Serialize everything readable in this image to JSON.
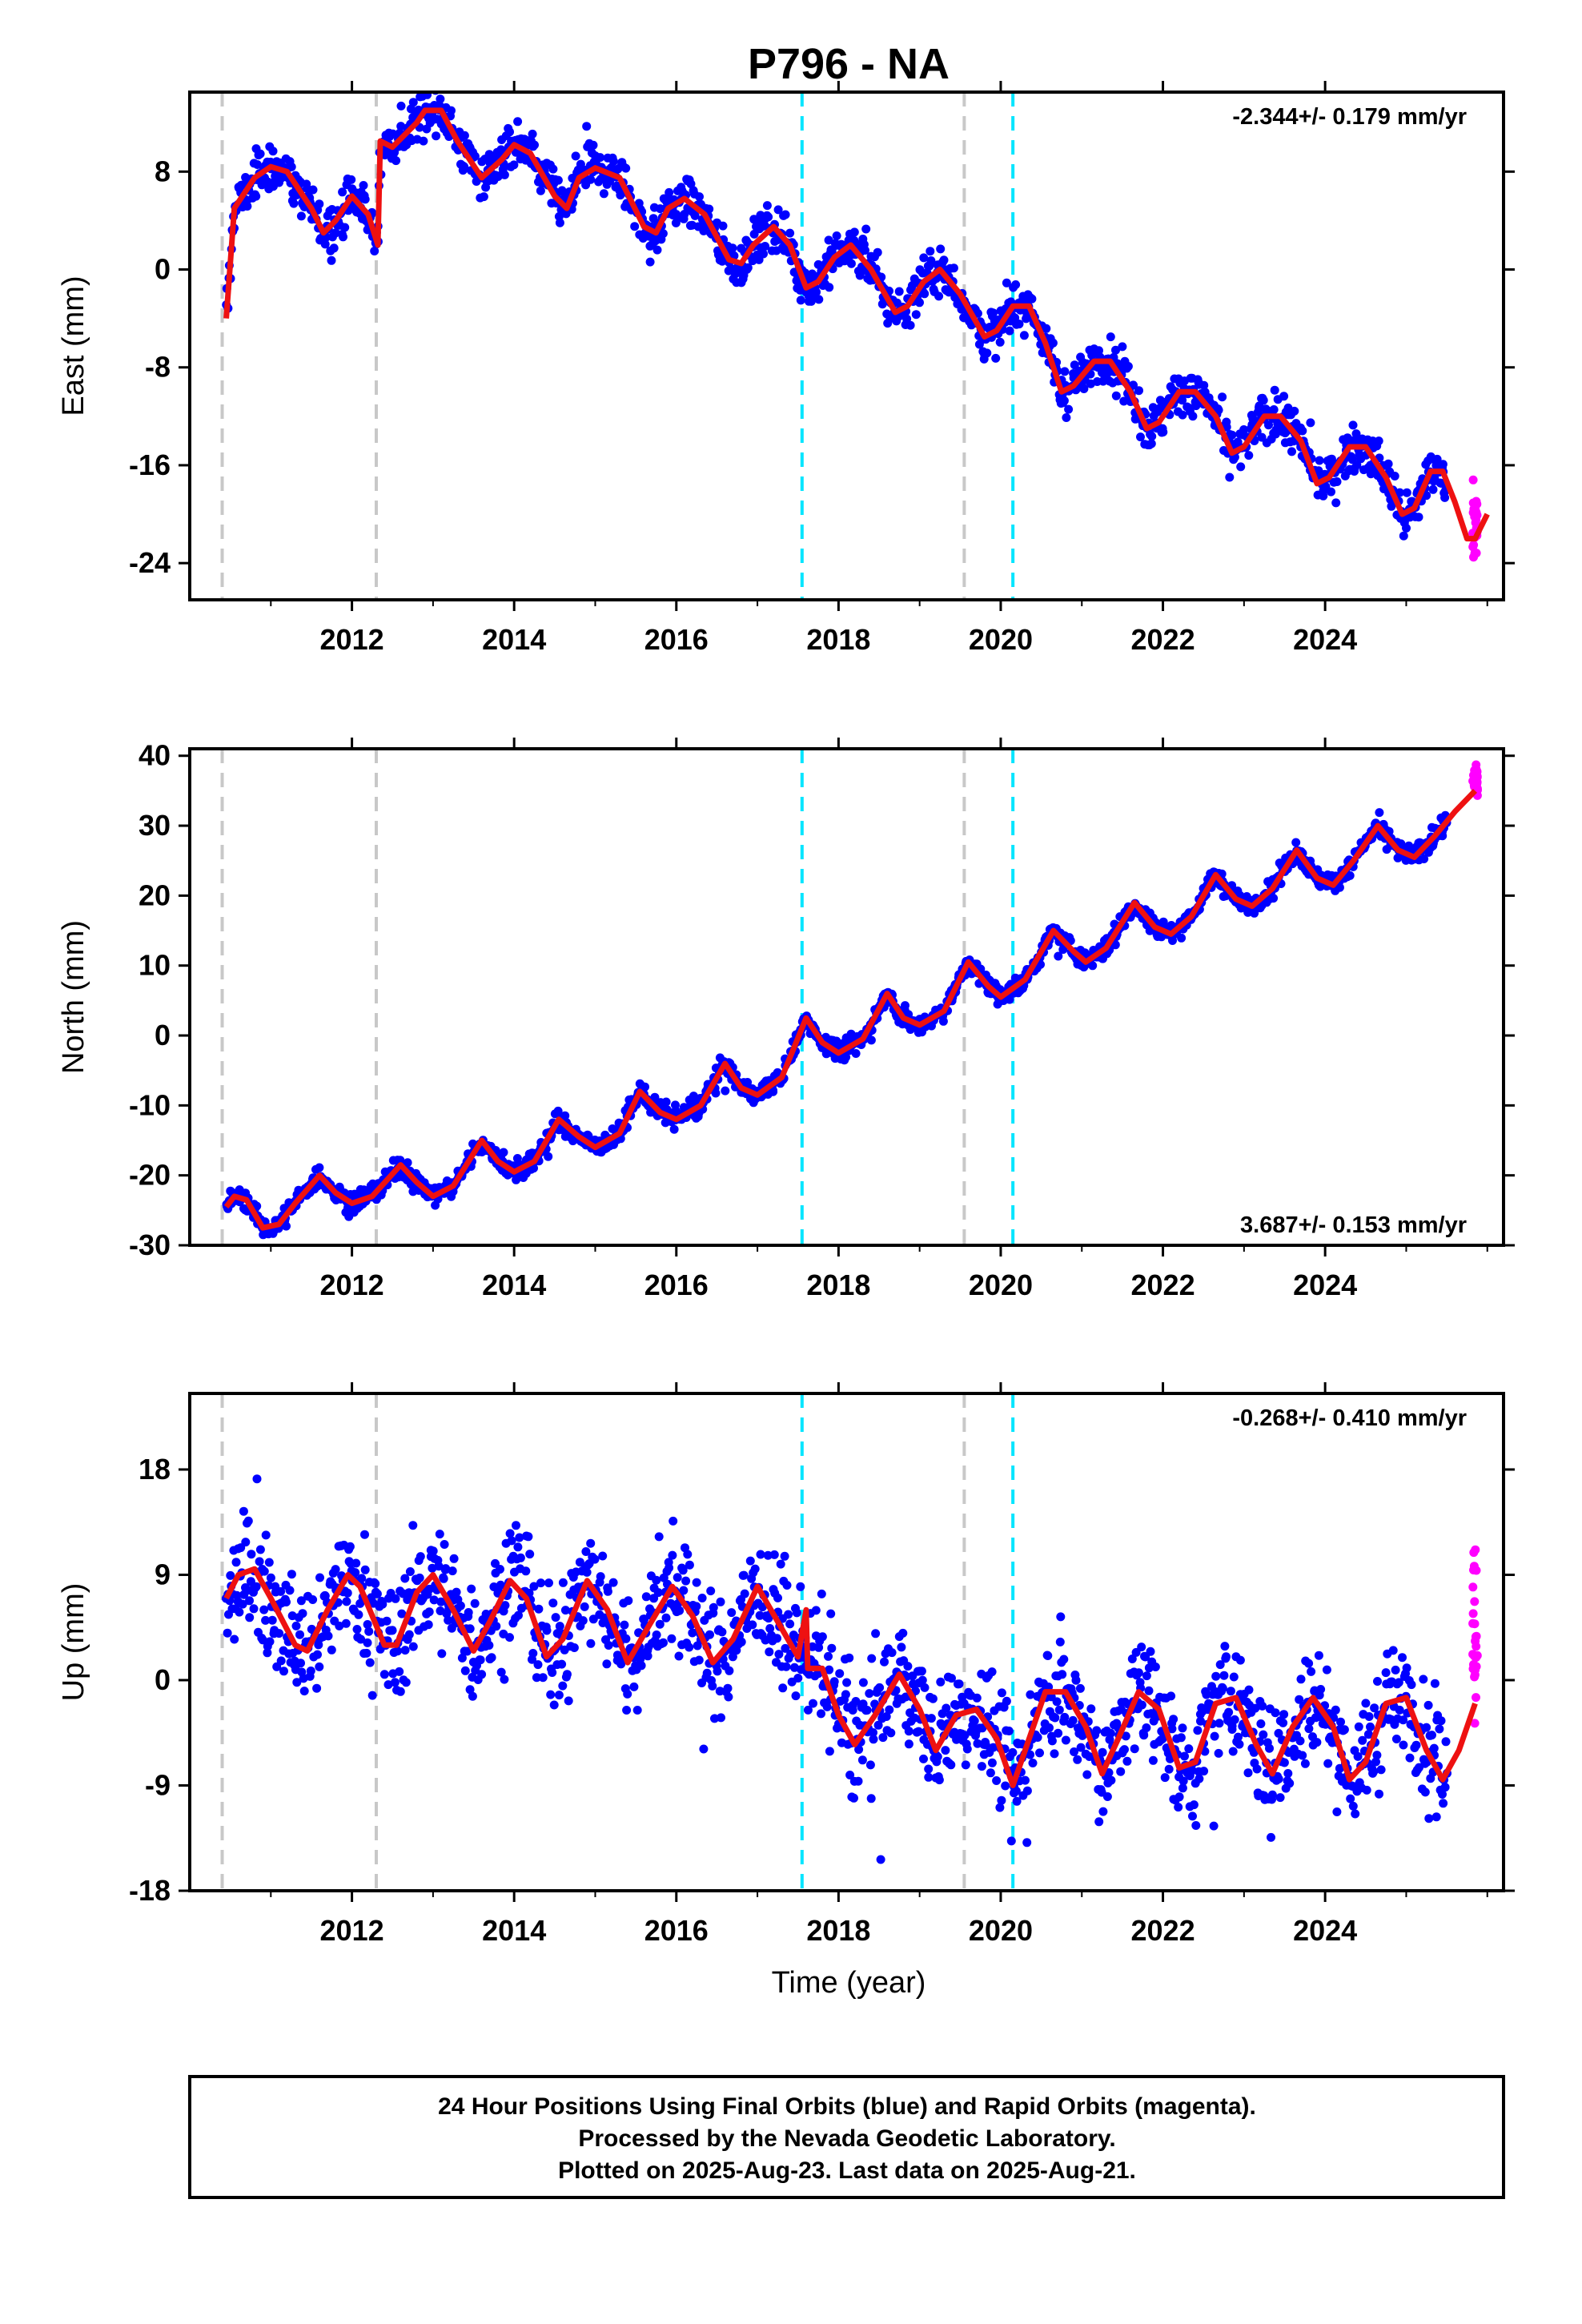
{
  "chart_title": "P796 - NA",
  "xlabel": "Time (year)",
  "colors": {
    "final_orbits": "#0000ff",
    "rapid_orbits": "#ff00ff",
    "model": "#ee1111",
    "equipment_change": "#c8c8c8",
    "earthquake": "#00e5ff"
  },
  "caption_lines": [
    "24 Hour Positions Using Final Orbits (blue) and Rapid Orbits (magenta).",
    "Processed by the Nevada Geodetic Laboratory.",
    "Plotted on 2025-Aug-23. Last data on 2025-Aug-21."
  ],
  "chart_data": [
    {
      "type": "scatter",
      "component": "East",
      "ylabel": "East (mm)",
      "rate_label": "-2.344+/- 0.179 mm/yr",
      "rate_position": "top-right",
      "xlim": [
        2010.0,
        2026.2
      ],
      "ylim": [
        -27,
        14.5
      ],
      "x_ticks": [
        2012,
        2014,
        2016,
        2018,
        2020,
        2022,
        2024
      ],
      "y_ticks": [
        8,
        0,
        -8,
        -16,
        -24
      ],
      "data_span": [
        2010.45,
        2025.5
      ],
      "rapid_span": [
        2025.5,
        2025.64
      ],
      "model_curve": [
        [
          2010.45,
          -4
        ],
        [
          2010.55,
          5
        ],
        [
          2010.8,
          7.5
        ],
        [
          2011.0,
          8.4
        ],
        [
          2011.2,
          8
        ],
        [
          2011.5,
          5
        ],
        [
          2011.65,
          3
        ],
        [
          2011.8,
          4
        ],
        [
          2012.0,
          6
        ],
        [
          2012.2,
          4.5
        ],
        [
          2012.32,
          2
        ],
        [
          2012.35,
          10.5
        ],
        [
          2012.5,
          10
        ],
        [
          2012.8,
          12
        ],
        [
          2012.9,
          13
        ],
        [
          2013.1,
          13
        ],
        [
          2013.3,
          10.5
        ],
        [
          2013.6,
          7.5
        ],
        [
          2013.85,
          9
        ],
        [
          2014.0,
          10.2
        ],
        [
          2014.2,
          9.5
        ],
        [
          2014.5,
          6
        ],
        [
          2014.65,
          5
        ],
        [
          2014.8,
          7.5
        ],
        [
          2015.0,
          8.3
        ],
        [
          2015.3,
          7.5
        ],
        [
          2015.6,
          3.5
        ],
        [
          2015.75,
          3
        ],
        [
          2015.9,
          5
        ],
        [
          2016.1,
          5.8
        ],
        [
          2016.35,
          4.5
        ],
        [
          2016.65,
          0.8
        ],
        [
          2016.8,
          0.5
        ],
        [
          2016.95,
          2
        ],
        [
          2017.2,
          3.5
        ],
        [
          2017.4,
          2
        ],
        [
          2017.6,
          -1.5
        ],
        [
          2017.75,
          -1
        ],
        [
          2017.95,
          1
        ],
        [
          2018.15,
          2
        ],
        [
          2018.4,
          0
        ],
        [
          2018.7,
          -3.5
        ],
        [
          2018.85,
          -3
        ],
        [
          2019.05,
          -1
        ],
        [
          2019.25,
          0
        ],
        [
          2019.5,
          -2
        ],
        [
          2019.8,
          -5.5
        ],
        [
          2019.95,
          -5
        ],
        [
          2020.15,
          -3
        ],
        [
          2020.35,
          -3
        ],
        [
          2020.55,
          -6
        ],
        [
          2020.75,
          -10
        ],
        [
          2020.9,
          -9.5
        ],
        [
          2021.15,
          -7.5
        ],
        [
          2021.35,
          -7.5
        ],
        [
          2021.6,
          -10
        ],
        [
          2021.8,
          -13
        ],
        [
          2021.95,
          -12.5
        ],
        [
          2022.2,
          -10
        ],
        [
          2022.4,
          -10
        ],
        [
          2022.65,
          -12
        ],
        [
          2022.85,
          -15
        ],
        [
          2023.0,
          -14.5
        ],
        [
          2023.25,
          -12
        ],
        [
          2023.45,
          -12
        ],
        [
          2023.7,
          -14
        ],
        [
          2023.9,
          -17.5
        ],
        [
          2024.05,
          -17
        ],
        [
          2024.3,
          -14.5
        ],
        [
          2024.5,
          -14.5
        ],
        [
          2024.75,
          -17
        ],
        [
          2024.95,
          -20
        ],
        [
          2025.1,
          -19.5
        ],
        [
          2025.3,
          -16.5
        ],
        [
          2025.45,
          -16.5
        ],
        [
          2025.6,
          -19
        ],
        [
          2025.75,
          -22
        ],
        [
          2025.85,
          -22
        ],
        [
          2026.0,
          -20
        ]
      ],
      "vertical_lines": [
        {
          "x": 2010.4,
          "kind": "equipment_change"
        },
        {
          "x": 2012.3,
          "kind": "equipment_change"
        },
        {
          "x": 2017.55,
          "kind": "earthquake"
        },
        {
          "x": 2019.55,
          "kind": "equipment_change"
        },
        {
          "x": 2020.15,
          "kind": "earthquake"
        }
      ]
    },
    {
      "type": "scatter",
      "component": "North",
      "ylabel": "North (mm)",
      "rate_label": "3.687+/- 0.153 mm/yr",
      "rate_position": "bottom-right",
      "xlim": [
        2010.0,
        2026.2
      ],
      "ylim": [
        -30,
        41
      ],
      "x_ticks": [
        2012,
        2014,
        2016,
        2018,
        2020,
        2022,
        2024
      ],
      "y_ticks": [
        40,
        30,
        20,
        10,
        0,
        -10,
        -20,
        -30
      ],
      "data_span": [
        2010.45,
        2025.5
      ],
      "rapid_span": [
        2025.5,
        2025.64
      ],
      "model_curve": [
        [
          2010.45,
          -24.5
        ],
        [
          2010.55,
          -23
        ],
        [
          2010.7,
          -23.5
        ],
        [
          2010.9,
          -27.5
        ],
        [
          2011.1,
          -27
        ],
        [
          2011.3,
          -24
        ],
        [
          2011.6,
          -20
        ],
        [
          2011.8,
          -22.5
        ],
        [
          2012.0,
          -24
        ],
        [
          2012.25,
          -23
        ],
        [
          2012.6,
          -18.5
        ],
        [
          2012.8,
          -21
        ],
        [
          2013.0,
          -23
        ],
        [
          2013.25,
          -21.5
        ],
        [
          2013.6,
          -15
        ],
        [
          2013.8,
          -18
        ],
        [
          2014.0,
          -19.5
        ],
        [
          2014.25,
          -18
        ],
        [
          2014.55,
          -12
        ],
        [
          2014.8,
          -14.5
        ],
        [
          2015.0,
          -16
        ],
        [
          2015.3,
          -14
        ],
        [
          2015.55,
          -8
        ],
        [
          2015.8,
          -11
        ],
        [
          2016.0,
          -12
        ],
        [
          2016.3,
          -10
        ],
        [
          2016.6,
          -4
        ],
        [
          2016.8,
          -7.5
        ],
        [
          2017.0,
          -8.5
        ],
        [
          2017.3,
          -6
        ],
        [
          2017.6,
          2.5
        ],
        [
          2017.8,
          -1
        ],
        [
          2018.0,
          -2.5
        ],
        [
          2018.3,
          -0.5
        ],
        [
          2018.6,
          6
        ],
        [
          2018.8,
          2.5
        ],
        [
          2019.0,
          1.5
        ],
        [
          2019.3,
          3.5
        ],
        [
          2019.6,
          10.5
        ],
        [
          2019.85,
          7
        ],
        [
          2020.0,
          5.5
        ],
        [
          2020.3,
          8
        ],
        [
          2020.65,
          15
        ],
        [
          2020.9,
          12
        ],
        [
          2021.05,
          10.5
        ],
        [
          2021.3,
          12.5
        ],
        [
          2021.65,
          19
        ],
        [
          2021.9,
          15.5
        ],
        [
          2022.1,
          14.5
        ],
        [
          2022.35,
          17
        ],
        [
          2022.65,
          23
        ],
        [
          2022.9,
          19.5
        ],
        [
          2023.1,
          18.5
        ],
        [
          2023.35,
          21
        ],
        [
          2023.65,
          26.5
        ],
        [
          2023.9,
          22.5
        ],
        [
          2024.1,
          21.5
        ],
        [
          2024.35,
          25
        ],
        [
          2024.65,
          30
        ],
        [
          2024.9,
          26.5
        ],
        [
          2025.1,
          25.5
        ],
        [
          2025.35,
          28.5
        ],
        [
          2025.6,
          32
        ],
        [
          2025.85,
          35
        ]
      ],
      "vertical_lines": [
        {
          "x": 2010.4,
          "kind": "equipment_change"
        },
        {
          "x": 2012.3,
          "kind": "equipment_change"
        },
        {
          "x": 2017.55,
          "kind": "earthquake"
        },
        {
          "x": 2019.55,
          "kind": "equipment_change"
        },
        {
          "x": 2020.15,
          "kind": "earthquake"
        }
      ]
    },
    {
      "type": "scatter",
      "component": "Up",
      "ylabel": "Up (mm)",
      "rate_label": "-0.268+/- 0.410 mm/yr",
      "rate_position": "top-right",
      "xlim": [
        2010.0,
        2026.2
      ],
      "ylim": [
        -18,
        24.5
      ],
      "x_ticks": [
        2012,
        2014,
        2016,
        2018,
        2020,
        2022,
        2024
      ],
      "y_ticks": [
        18,
        9,
        0,
        -9,
        -18
      ],
      "data_span": [
        2010.45,
        2025.5
      ],
      "rapid_span": [
        2025.5,
        2025.64
      ],
      "model_curve": [
        [
          2010.45,
          7
        ],
        [
          2010.6,
          9
        ],
        [
          2010.8,
          9.5
        ],
        [
          2011.0,
          7
        ],
        [
          2011.3,
          3
        ],
        [
          2011.45,
          2.5
        ],
        [
          2011.7,
          6
        ],
        [
          2011.95,
          9
        ],
        [
          2012.1,
          8
        ],
        [
          2012.4,
          3
        ],
        [
          2012.55,
          3
        ],
        [
          2012.8,
          7.5
        ],
        [
          2013.0,
          9
        ],
        [
          2013.25,
          6
        ],
        [
          2013.5,
          2.5
        ],
        [
          2013.7,
          5
        ],
        [
          2013.95,
          8.5
        ],
        [
          2014.15,
          7
        ],
        [
          2014.4,
          2
        ],
        [
          2014.6,
          3.5
        ],
        [
          2014.9,
          8.5
        ],
        [
          2015.15,
          6
        ],
        [
          2015.4,
          1.5
        ],
        [
          2015.65,
          4.5
        ],
        [
          2015.95,
          8
        ],
        [
          2016.2,
          5.5
        ],
        [
          2016.45,
          1.5
        ],
        [
          2016.7,
          3.5
        ],
        [
          2017.0,
          8
        ],
        [
          2017.25,
          5
        ],
        [
          2017.5,
          2
        ],
        [
          2017.6,
          6
        ],
        [
          2017.62,
          1
        ],
        [
          2017.8,
          1
        ],
        [
          2018.0,
          -3
        ],
        [
          2018.2,
          -5.5
        ],
        [
          2018.45,
          -3
        ],
        [
          2018.75,
          0.5
        ],
        [
          2019.0,
          -2.5
        ],
        [
          2019.2,
          -6
        ],
        [
          2019.45,
          -3
        ],
        [
          2019.7,
          -2.5
        ],
        [
          2019.95,
          -5
        ],
        [
          2020.15,
          -9
        ],
        [
          2020.3,
          -6
        ],
        [
          2020.55,
          -1
        ],
        [
          2020.8,
          -1
        ],
        [
          2021.05,
          -4
        ],
        [
          2021.25,
          -8
        ],
        [
          2021.45,
          -5
        ],
        [
          2021.7,
          -1
        ],
        [
          2021.95,
          -2.5
        ],
        [
          2022.2,
          -7.5
        ],
        [
          2022.4,
          -7
        ],
        [
          2022.65,
          -2
        ],
        [
          2022.9,
          -1.5
        ],
        [
          2023.15,
          -5.5
        ],
        [
          2023.35,
          -8
        ],
        [
          2023.6,
          -4
        ],
        [
          2023.85,
          -1.5
        ],
        [
          2024.1,
          -4
        ],
        [
          2024.3,
          -8.5
        ],
        [
          2024.5,
          -7
        ],
        [
          2024.75,
          -2
        ],
        [
          2025.0,
          -1.5
        ],
        [
          2025.25,
          -6
        ],
        [
          2025.45,
          -8.5
        ],
        [
          2025.65,
          -6
        ],
        [
          2025.85,
          -2
        ]
      ],
      "vertical_lines": [
        {
          "x": 2010.4,
          "kind": "equipment_change"
        },
        {
          "x": 2012.3,
          "kind": "equipment_change"
        },
        {
          "x": 2017.55,
          "kind": "earthquake"
        },
        {
          "x": 2019.55,
          "kind": "equipment_change"
        },
        {
          "x": 2020.15,
          "kind": "earthquake"
        }
      ]
    }
  ]
}
